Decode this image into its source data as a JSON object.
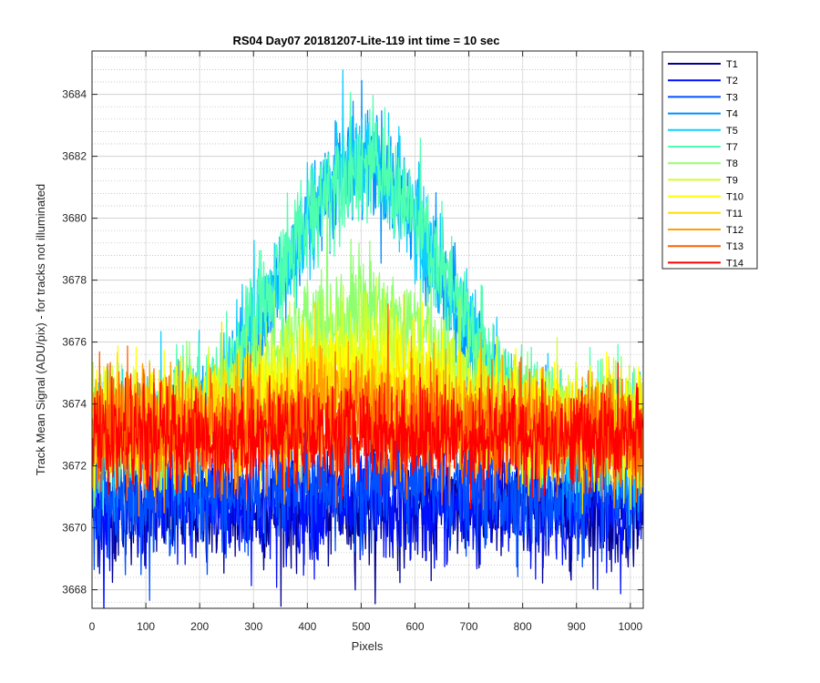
{
  "chart_data": {
    "type": "line",
    "title": "RS04 Day07 20181207-Lite-119 int time = 10 sec",
    "xlabel": "Pixels",
    "ylabel": "Track Mean Signal (ADU/pix) - for tracks not illuminated",
    "xlim": [
      0,
      1024
    ],
    "ylim": [
      3667.4,
      3685.4
    ],
    "x_ticks": [
      0,
      100,
      200,
      300,
      400,
      500,
      600,
      700,
      800,
      900,
      1000
    ],
    "x_tick_labels": [
      "0",
      "100",
      "200",
      "300",
      "400",
      "500",
      "600",
      "700",
      "800",
      "900",
      "1000"
    ],
    "y_ticks": [
      3668,
      3670,
      3672,
      3674,
      3676,
      3678,
      3680,
      3682,
      3684
    ],
    "y_tick_labels": [
      "3668",
      "3670",
      "3672",
      "3674",
      "3676",
      "3678",
      "3680",
      "3682",
      "3684"
    ],
    "grid": true,
    "minor_grid_y": true,
    "legend_position": "outside-top-right",
    "num_points": 1024,
    "series": [
      {
        "name": "T1",
        "color": "#00008f",
        "base": 3670.6,
        "peak": 0.0,
        "width": 250,
        "noise": 0.9
      },
      {
        "name": "T2",
        "color": "#0010ff",
        "base": 3670.7,
        "peak": 0.0,
        "width": 250,
        "noise": 0.9
      },
      {
        "name": "T3",
        "color": "#0050ff",
        "base": 3671.0,
        "peak": 0.5,
        "width": 250,
        "noise": 0.9
      },
      {
        "name": "T4",
        "color": "#0090ff",
        "base": 3672.3,
        "peak": 9.6,
        "width": 205,
        "noise": 0.9
      },
      {
        "name": "T5",
        "color": "#10cfff",
        "base": 3672.8,
        "peak": 9.0,
        "width": 205,
        "noise": 0.9
      },
      {
        "name": "T7",
        "color": "#4fffaf",
        "base": 3673.0,
        "peak": 8.7,
        "width": 210,
        "noise": 0.9
      },
      {
        "name": "T8",
        "color": "#8fff6f",
        "base": 3673.2,
        "peak": 4.0,
        "width": 205,
        "noise": 0.9
      },
      {
        "name": "T9",
        "color": "#cfff30",
        "base": 3673.3,
        "peak": 2.7,
        "width": 205,
        "noise": 0.9
      },
      {
        "name": "T10",
        "color": "#ffff00",
        "base": 3673.3,
        "peak": 2.0,
        "width": 200,
        "noise": 0.9
      },
      {
        "name": "T11",
        "color": "#ffdf00",
        "base": 3673.2,
        "peak": 1.3,
        "width": 200,
        "noise": 0.9
      },
      {
        "name": "T12",
        "color": "#ff9f00",
        "base": 3673.1,
        "peak": 0.8,
        "width": 200,
        "noise": 0.9
      },
      {
        "name": "T13",
        "color": "#ff6000",
        "base": 3673.0,
        "peak": 0.4,
        "width": 200,
        "noise": 0.9
      },
      {
        "name": "T14",
        "color": "#ff0000",
        "base": 3672.9,
        "peak": 0.2,
        "width": 200,
        "noise": 0.8
      }
    ]
  }
}
